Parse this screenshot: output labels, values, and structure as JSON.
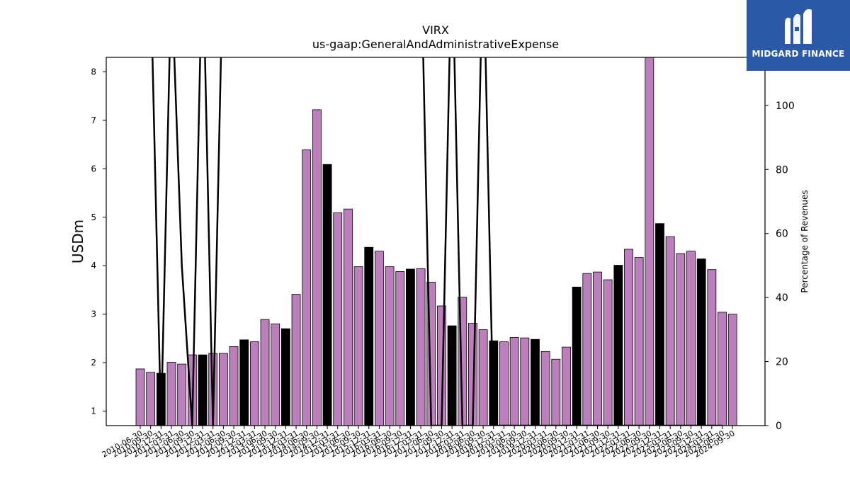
{
  "chart_data": {
    "type": "bar",
    "title": "VIRX",
    "subtitle": "us-gaap:GeneralAndAdministrativeExpense",
    "ylabel": "USDm",
    "y2label": "Percentage of Revenues",
    "ylim": [
      0.7,
      8.3
    ],
    "y2lim": [
      0,
      115
    ],
    "yticks": [
      1,
      2,
      3,
      4,
      5,
      6,
      7,
      8
    ],
    "y2ticks": [
      0,
      20,
      40,
      60,
      80,
      100
    ],
    "categories": [
      "2010-06-30",
      "2010-09-30",
      "2010-12-31",
      "2011-03-31",
      "2011-06-30",
      "2011-09-30",
      "2011-12-31",
      "2012-03-31",
      "2012-06-30",
      "2012-09-30",
      "2012-12-31",
      "2013-03-31",
      "2013-06-30",
      "2013-09-30",
      "2013-12-31",
      "2014-03-31",
      "2014-06-30",
      "2014-09-30",
      "2014-12-31",
      "2015-03-31",
      "2015-06-30",
      "2015-09-30",
      "2015-12-31",
      "2016-03-31",
      "2016-06-30",
      "2016-09-30",
      "2016-12-31",
      "2017-03-31",
      "2017-06-30",
      "2017-09-30",
      "2017-12-31",
      "2018-03-31",
      "2018-06-30",
      "2018-09-30",
      "2018-12-31",
      "2019-03-31",
      "2019-06-30",
      "2019-09-30",
      "2019-12-31",
      "2020-03-31",
      "2020-06-30",
      "2020-09-30",
      "2020-12-31",
      "2021-03-31",
      "2021-06-30",
      "2021-09-30",
      "2021-12-31",
      "2022-03-31",
      "2022-06-30",
      "2022-09-30",
      "2022-12-31",
      "2023-03-31",
      "2023-06-30",
      "2023-09-30",
      "2023-12-31",
      "2024-03-31",
      "2024-06-30",
      "2024-09-30"
    ],
    "values": [
      1.87,
      1.8,
      1.78,
      2.01,
      1.97,
      2.16,
      2.16,
      2.19,
      2.19,
      2.33,
      2.47,
      2.43,
      2.89,
      2.8,
      2.7,
      3.41,
      6.39,
      7.22,
      6.09,
      5.09,
      5.17,
      3.98,
      4.38,
      4.3,
      3.98,
      3.88,
      3.93,
      3.94,
      3.66,
      3.17,
      2.76,
      3.35,
      2.81,
      2.68,
      2.45,
      2.43,
      2.52,
      2.51,
      2.48,
      2.23,
      2.07,
      2.32,
      3.56,
      3.84,
      3.87,
      3.71,
      4.01,
      4.34,
      4.17,
      8.35,
      4.87,
      4.6,
      4.25,
      4.3,
      4.14,
      3.92,
      3.04,
      3.0
    ],
    "annual": [
      false,
      false,
      true,
      false,
      false,
      false,
      true,
      false,
      false,
      false,
      true,
      false,
      false,
      false,
      true,
      false,
      false,
      false,
      true,
      false,
      false,
      false,
      true,
      false,
      false,
      false,
      true,
      false,
      false,
      false,
      true,
      false,
      false,
      false,
      true,
      false,
      false,
      false,
      true,
      false,
      false,
      false,
      true,
      false,
      false,
      false,
      true,
      false,
      false,
      false,
      true,
      false,
      false,
      false,
      true,
      false,
      false,
      false
    ],
    "pct_of_revenues": [
      null,
      140,
      0,
      140,
      50,
      0,
      150,
      0,
      150,
      null,
      null,
      null,
      null,
      null,
      null,
      null,
      null,
      null,
      null,
      null,
      null,
      null,
      null,
      null,
      null,
      null,
      null,
      150,
      0,
      0,
      150,
      0,
      0,
      150,
      0,
      0,
      0,
      0,
      0,
      0,
      0,
      0,
      0,
      0,
      0,
      0,
      0,
      0,
      0,
      0,
      0,
      0,
      0,
      0,
      0,
      0,
      0,
      null
    ],
    "colors": {
      "quarter_bar": "#bb80bb",
      "annual_bar": "#000000",
      "line": "#000000"
    }
  },
  "logo": {
    "text": "MIDGARD FINANCE",
    "background": "#2b59a8",
    "icon": "midgard-m-logo-icon"
  }
}
